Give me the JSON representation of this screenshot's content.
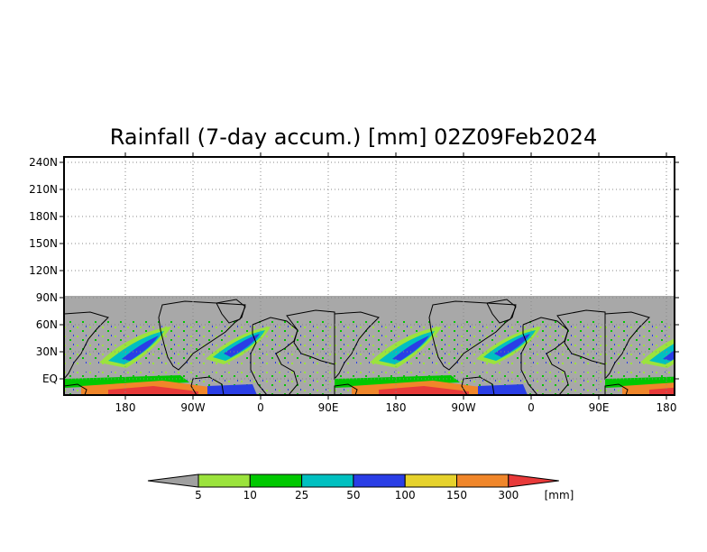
{
  "title": "Rainfall (7-day accum.) [mm] 02Z09Feb2024",
  "map": {
    "lat_labels": [
      "240N",
      "210N",
      "180N",
      "150N",
      "120N",
      "90N",
      "60N",
      "30N",
      "EQ"
    ],
    "lon_labels": [
      "180",
      "90W",
      "0",
      "90E",
      "180",
      "90W",
      "0",
      "90E",
      "180"
    ],
    "missing_color": "#a8a8a8",
    "coastline_color": "#000000",
    "grid": "dotted"
  },
  "colorbar": {
    "under_color": "#a0a0a0",
    "over_color": "#e83a3a",
    "colors": [
      "#9be33c",
      "#00c800",
      "#00c0c0",
      "#2a3ee6",
      "#e6d22c",
      "#f0862a"
    ],
    "labels": [
      "5",
      "10",
      "25",
      "50",
      "100",
      "150",
      "300"
    ],
    "units": "[mm]"
  }
}
